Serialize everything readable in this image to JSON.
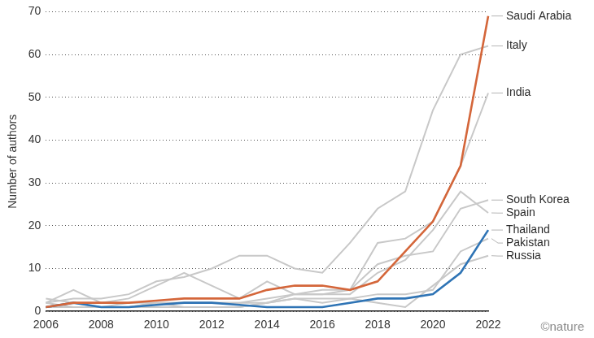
{
  "chart_data": {
    "type": "line",
    "y_label": "Number of authors",
    "credit": "©nature",
    "x": [
      2006,
      2007,
      2008,
      2009,
      2010,
      2011,
      2012,
      2013,
      2014,
      2015,
      2016,
      2017,
      2018,
      2019,
      2020,
      2021,
      2022
    ],
    "xlim": [
      2006,
      2022
    ],
    "xticks": [
      2006,
      2008,
      2010,
      2012,
      2014,
      2016,
      2018,
      2020,
      2022
    ],
    "ylim": [
      0,
      70
    ],
    "yticks": [
      0,
      10,
      20,
      30,
      40,
      50,
      60,
      70
    ],
    "grid": true,
    "series": [
      {
        "name": "Saudi Arabia",
        "color": "#d4663a",
        "values": [
          1,
          2,
          2,
          2,
          2.5,
          3,
          3,
          3,
          5,
          6,
          6,
          5,
          7,
          14,
          21,
          34,
          69
        ]
      },
      {
        "name": "Italy",
        "color": "#c8c8c8",
        "values": [
          2,
          3,
          3,
          4,
          7,
          8,
          10,
          13,
          13,
          10,
          9,
          16,
          24,
          28,
          47,
          60,
          62
        ]
      },
      {
        "name": "India",
        "color": "#c8c8c8",
        "values": [
          2,
          5,
          2,
          3,
          6,
          9,
          6,
          3,
          7,
          4,
          5,
          5,
          16,
          17,
          21,
          34,
          51
        ]
      },
      {
        "name": "South Korea",
        "color": "#c8c8c8",
        "values": [
          3,
          2,
          1,
          2,
          2,
          2,
          2,
          2,
          3,
          4,
          4,
          5,
          11,
          13,
          14,
          24,
          26
        ]
      },
      {
        "name": "Spain",
        "color": "#c8c8c8",
        "values": [
          2,
          1,
          1,
          1,
          2,
          2,
          2,
          2,
          2,
          4,
          4,
          4,
          9,
          12,
          19,
          28,
          23
        ]
      },
      {
        "name": "Thailand",
        "color": "#2f74b5",
        "values": [
          1,
          2,
          1,
          1,
          1.5,
          2,
          2,
          1.5,
          1,
          1,
          1,
          2,
          3,
          3,
          4,
          9,
          19
        ]
      },
      {
        "name": "Pakistan",
        "color": "#c8c8c8",
        "values": [
          1,
          1,
          1,
          1,
          2,
          1,
          1,
          1,
          2,
          3,
          3,
          3,
          4,
          4,
          5,
          14,
          17
        ]
      },
      {
        "name": "Russia",
        "color": "#c8c8c8",
        "values": [
          1,
          1,
          1,
          1,
          1,
          1,
          1,
          1,
          2,
          3,
          2,
          3,
          2,
          1,
          6,
          11,
          13
        ]
      }
    ]
  }
}
